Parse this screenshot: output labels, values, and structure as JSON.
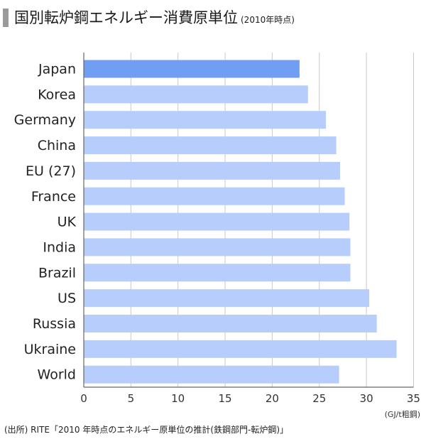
{
  "header": {
    "title": "国別転炉鋼エネルギー消費原単位",
    "subtitle": "(2010年時点)"
  },
  "chart_data": {
    "type": "bar",
    "orientation": "horizontal",
    "categories": [
      "Japan",
      "Korea",
      "Germany",
      "China",
      "EU (27)",
      "France",
      "UK",
      "India",
      "Brazil",
      "US",
      "Russia",
      "Ukraine",
      "World"
    ],
    "values": [
      22.9,
      23.8,
      25.7,
      26.8,
      27.2,
      27.7,
      28.2,
      28.3,
      28.3,
      30.3,
      31.1,
      33.2,
      27.1
    ],
    "highlight": "Japan",
    "xlim": [
      0,
      35
    ],
    "xticks": [
      0,
      5,
      10,
      15,
      20,
      25,
      30,
      35
    ],
    "unit_label": "(GJ/t粗鋼)",
    "grid": true,
    "colors": {
      "highlight": "#6f9ef3",
      "bar": "#b7cefd",
      "grid": "#c8c8c8",
      "axis": "#666666"
    }
  },
  "footer": {
    "source": "(出所) RITE「2010 年時点のエネルギー原単位の推計(鉄鋼部門-転炉鋼)」"
  }
}
